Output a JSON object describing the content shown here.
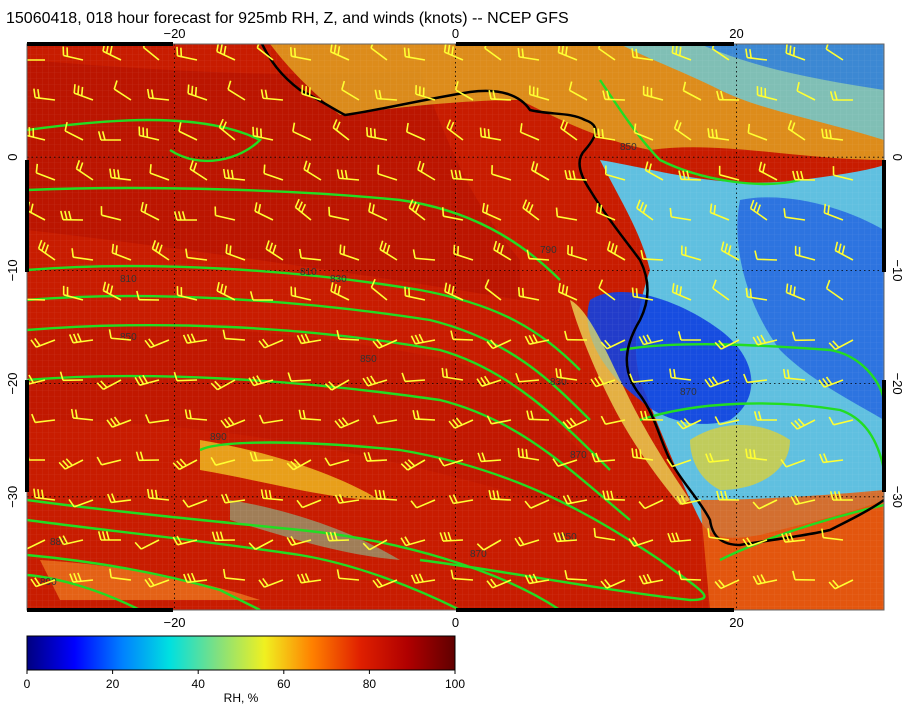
{
  "title": "15060418, 018 hour forecast for 925mb RH, Z, and winds (knots) -- NCEP GFS",
  "map": {
    "lon_range": [
      -30.5,
      30.5
    ],
    "lat_range": [
      -40,
      10
    ],
    "lon_ticks": [
      -20,
      0,
      20
    ],
    "lat_ticks": [
      0,
      -10,
      -20,
      -30
    ],
    "lon_tick_labels": [
      "−20",
      "0",
      "20"
    ],
    "lat_tick_labels": [
      "0",
      "−10",
      "−20",
      "−30"
    ],
    "grid": "dotted",
    "coastline_color": "#000000",
    "contour_color": "#22dd22",
    "wind_barb_color": "#ffff33"
  },
  "contours": {
    "labels": [
      "810",
      "810",
      "830",
      "850",
      "850",
      "870",
      "890",
      "850",
      "870",
      "880",
      "890",
      "790",
      "870",
      "830",
      "850"
    ]
  },
  "colorbar": {
    "label": "RH, %",
    "ticks": [
      "0",
      "20",
      "40",
      "60",
      "80",
      "100"
    ],
    "range": [
      0,
      100
    ],
    "colors": [
      "#000080",
      "#0000ff",
      "#0080ff",
      "#00e0e0",
      "#80e080",
      "#f0f020",
      "#ff8000",
      "#e02000",
      "#b00000",
      "#600000"
    ]
  }
}
